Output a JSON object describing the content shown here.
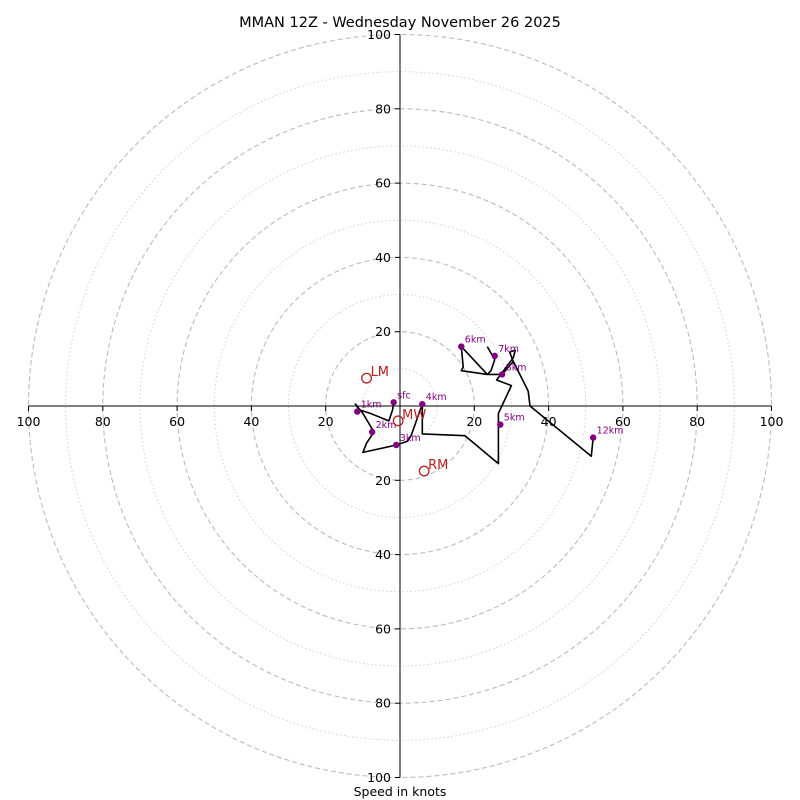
{
  "chart_data": {
    "type": "hodograph",
    "title": "MMAN 12Z - Wednesday November 26 2025",
    "xlabel": "Speed in knots",
    "ring_labels": [
      "20",
      "40",
      "60",
      "80",
      "100"
    ],
    "xlim": [
      -100,
      100
    ],
    "ylim": [
      -100,
      100
    ],
    "major_ring_step": 20,
    "minor_ring_step": 10,
    "colors": {
      "trace": "#000000",
      "level_marker": "#800080",
      "storm_motion": "#b22222",
      "major_grid": "#bbbbbb",
      "minor_grid": "#cccccc"
    },
    "trace": [
      [
        -1.7,
        1.0
      ],
      [
        -2,
        -1
      ],
      [
        -3,
        -4
      ],
      [
        -8,
        -2
      ],
      [
        -11,
        -1
      ],
      [
        -12,
        0.5
      ],
      [
        -10,
        -2
      ],
      [
        -7,
        -7
      ],
      [
        -9,
        -10
      ],
      [
        -10,
        -12.5
      ],
      [
        -1,
        -10.5
      ],
      [
        2,
        -9.5
      ],
      [
        3,
        -8
      ],
      [
        6,
        0.5
      ],
      [
        6,
        -7.5
      ],
      [
        17.5,
        -8
      ],
      [
        26.5,
        -15.5
      ],
      [
        26.5,
        -2
      ],
      [
        30,
        5.5
      ],
      [
        26,
        7
      ],
      [
        30.5,
        13
      ],
      [
        31,
        15
      ],
      [
        29.5,
        14.5
      ],
      [
        30.5,
        12
      ],
      [
        34.5,
        4
      ],
      [
        35,
        0
      ],
      [
        51.5,
        -13.5
      ],
      [
        52,
        -8.5
      ],
      [
        51.5,
        -13.5
      ],
      [
        35,
        0
      ],
      [
        34.5,
        4
      ],
      [
        30.5,
        12
      ],
      [
        27.5,
        8.5
      ],
      [
        23.5,
        8.5
      ],
      [
        16.5,
        16
      ],
      [
        17,
        10.5
      ],
      [
        16.5,
        9.5
      ],
      [
        23.5,
        8.5
      ],
      [
        24.5,
        9.5
      ],
      [
        25.5,
        12.5
      ],
      [
        23.5,
        16
      ]
    ],
    "levels": [
      {
        "label": "sfc",
        "u": -1.7,
        "v": 1.0
      },
      {
        "label": "1km",
        "u": -11.5,
        "v": -1.5
      },
      {
        "label": "2km",
        "u": -7.5,
        "v": -7.0
      },
      {
        "label": "3km",
        "u": -1.0,
        "v": -10.5
      },
      {
        "label": "4km",
        "u": 6.0,
        "v": 0.5
      },
      {
        "label": "5km",
        "u": 27.0,
        "v": -5.0
      },
      {
        "label": "6km",
        "u": 16.5,
        "v": 16.0
      },
      {
        "label": "7km",
        "u": 25.5,
        "v": 13.5
      },
      {
        "label": "8km",
        "u": 27.5,
        "v": 8.5
      },
      {
        "label": "12km",
        "u": 52.0,
        "v": -8.5
      }
    ],
    "storm_motion": [
      {
        "label": "LM",
        "u": -9.0,
        "v": 7.5
      },
      {
        "label": "MW",
        "u": -0.5,
        "v": -4.0
      },
      {
        "label": "RM",
        "u": 6.5,
        "v": -17.5
      }
    ]
  }
}
